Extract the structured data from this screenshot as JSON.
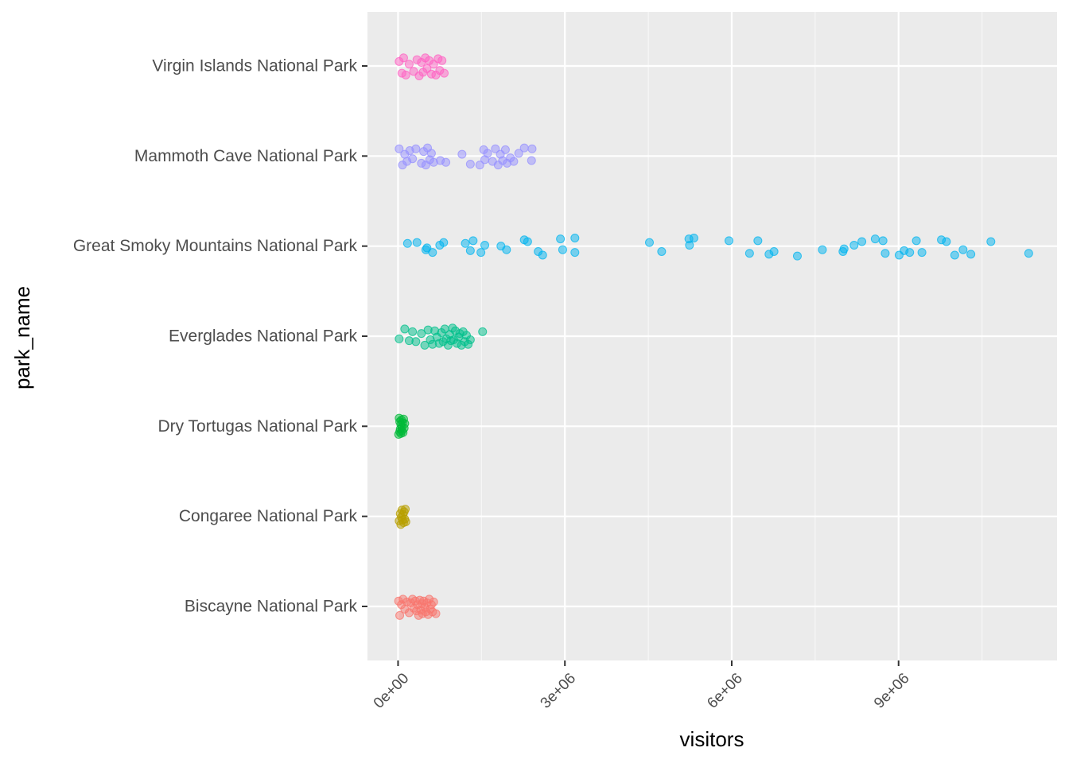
{
  "chart_data": {
    "type": "scatter",
    "title": "",
    "xlabel": "visitors",
    "ylabel": "park_name",
    "xlim": [
      -550000,
      11850000
    ],
    "x_ticks": [
      0,
      3000000,
      6000000,
      9000000
    ],
    "x_tick_labels": [
      "0e+00",
      "3e+06",
      "6e+06",
      "9e+06"
    ],
    "grid": true,
    "legend": "none",
    "categories": [
      "Biscayne National Park",
      "Congaree National Park",
      "Dry Tortugas National Park",
      "Everglades National Park",
      "Great Smoky Mountains National Park",
      "Mammoth Cave National Park",
      "Virgin Islands National Park"
    ],
    "series": [
      {
        "category": "Biscayne National Park",
        "color": "#F8766D",
        "points": [
          [
            10000,
            -0.06
          ],
          [
            30000,
            0.1
          ],
          [
            60000,
            -0.02
          ],
          [
            90000,
            -0.08
          ],
          [
            120000,
            0.03
          ],
          [
            160000,
            -0.05
          ],
          [
            200000,
            0.07
          ],
          [
            230000,
            -0.04
          ],
          [
            260000,
            -0.08
          ],
          [
            280000,
            0.02
          ],
          [
            310000,
            -0.06
          ],
          [
            330000,
            0.05
          ],
          [
            350000,
            -0.02
          ],
          [
            370000,
            0.1
          ],
          [
            390000,
            -0.07
          ],
          [
            410000,
            0.04
          ],
          [
            430000,
            -0.03
          ],
          [
            440000,
            0.08
          ],
          [
            460000,
            -0.06
          ],
          [
            480000,
            0.01
          ],
          [
            500000,
            0.06
          ],
          [
            520000,
            -0.04
          ],
          [
            540000,
            0.09
          ],
          [
            560000,
            -0.08
          ],
          [
            580000,
            0.03
          ],
          [
            600000,
            -0.02
          ],
          [
            620000,
            0.06
          ],
          [
            640000,
            -0.05
          ],
          [
            680000,
            0.08
          ]
        ]
      },
      {
        "category": "Congaree National Park",
        "color": "#B79F00",
        "points": [
          [
            20000,
            0.05
          ],
          [
            40000,
            -0.03
          ],
          [
            50000,
            0.09
          ],
          [
            60000,
            0.01
          ],
          [
            70000,
            -0.07
          ],
          [
            80000,
            0.04
          ],
          [
            90000,
            -0.02
          ],
          [
            100000,
            0.07
          ],
          [
            110000,
            -0.05
          ],
          [
            120000,
            0.03
          ],
          [
            130000,
            -0.08
          ],
          [
            140000,
            0.06
          ]
        ]
      },
      {
        "category": "Dry Tortugas National Park",
        "color": "#00BA38",
        "points": [
          [
            10000,
            0.09
          ],
          [
            20000,
            -0.09
          ],
          [
            30000,
            0.06
          ],
          [
            30000,
            -0.05
          ],
          [
            40000,
            0.03
          ],
          [
            50000,
            -0.02
          ],
          [
            50000,
            0.08
          ],
          [
            60000,
            -0.07
          ],
          [
            70000,
            0.01
          ],
          [
            70000,
            0.05
          ],
          [
            80000,
            -0.04
          ],
          [
            90000,
            0.07
          ],
          [
            100000,
            -0.08
          ],
          [
            110000,
            0.02
          ],
          [
            120000,
            -0.03
          ]
        ]
      },
      {
        "category": "Everglades National Park",
        "color": "#00C08B",
        "points": [
          [
            20000,
            0.03
          ],
          [
            120000,
            -0.08
          ],
          [
            200000,
            0.05
          ],
          [
            260000,
            -0.05
          ],
          [
            320000,
            0.06
          ],
          [
            420000,
            -0.03
          ],
          [
            480000,
            0.1
          ],
          [
            540000,
            -0.07
          ],
          [
            580000,
            0.04
          ],
          [
            620000,
            0.09
          ],
          [
            660000,
            -0.06
          ],
          [
            700000,
            0.01
          ],
          [
            740000,
            0.08
          ],
          [
            780000,
            -0.04
          ],
          [
            810000,
            0.06
          ],
          [
            840000,
            -0.08
          ],
          [
            870000,
            0.03
          ],
          [
            900000,
            0.1
          ],
          [
            930000,
            -0.02
          ],
          [
            950000,
            0.05
          ],
          [
            980000,
            -0.09
          ],
          [
            1000000,
            0.04
          ],
          [
            1030000,
            -0.06
          ],
          [
            1060000,
            0.08
          ],
          [
            1090000,
            0.01
          ],
          [
            1110000,
            -0.03
          ],
          [
            1140000,
            0.1
          ],
          [
            1170000,
            -0.05
          ],
          [
            1200000,
            0.06
          ],
          [
            1230000,
            -0.01
          ],
          [
            1260000,
            0.09
          ],
          [
            1300000,
            0.04
          ],
          [
            1520000,
            -0.05
          ]
        ]
      },
      {
        "category": "Great Smoky Mountains National Park",
        "color": "#00B4EF",
        "points": [
          [
            170000,
            -0.03
          ],
          [
            340000,
            -0.04
          ],
          [
            500000,
            0.04
          ],
          [
            520000,
            0.02
          ],
          [
            620000,
            0.07
          ],
          [
            750000,
            -0.01
          ],
          [
            820000,
            -0.04
          ],
          [
            1210000,
            -0.03
          ],
          [
            1300000,
            0.05
          ],
          [
            1350000,
            -0.06
          ],
          [
            1490000,
            0.07
          ],
          [
            1560000,
            -0.01
          ],
          [
            1850000,
            0.0
          ],
          [
            1950000,
            0.04
          ],
          [
            2270000,
            -0.07
          ],
          [
            2330000,
            -0.05
          ],
          [
            2520000,
            0.06
          ],
          [
            2600000,
            0.1
          ],
          [
            2920000,
            -0.08
          ],
          [
            2960000,
            0.04
          ],
          [
            3180000,
            0.07
          ],
          [
            3180000,
            -0.09
          ],
          [
            4520000,
            -0.04
          ],
          [
            4740000,
            0.06
          ],
          [
            5230000,
            -0.08
          ],
          [
            5240000,
            -0.01
          ],
          [
            5320000,
            -0.09
          ],
          [
            5950000,
            -0.06
          ],
          [
            6320000,
            0.08
          ],
          [
            6470000,
            -0.06
          ],
          [
            6670000,
            0.09
          ],
          [
            6760000,
            0.06
          ],
          [
            7180000,
            0.11
          ],
          [
            7630000,
            0.04
          ],
          [
            8000000,
            0.06
          ],
          [
            8020000,
            0.03
          ],
          [
            8200000,
            -0.01
          ],
          [
            8340000,
            -0.05
          ],
          [
            8580000,
            -0.08
          ],
          [
            8720000,
            -0.06
          ],
          [
            8760000,
            0.08
          ],
          [
            9010000,
            0.1
          ],
          [
            9100000,
            0.05
          ],
          [
            9200000,
            0.07
          ],
          [
            9320000,
            -0.06
          ],
          [
            9420000,
            0.07
          ],
          [
            9770000,
            -0.07
          ],
          [
            9860000,
            -0.05
          ],
          [
            10010000,
            0.1
          ],
          [
            10160000,
            0.04
          ],
          [
            10300000,
            0.09
          ],
          [
            10660000,
            -0.05
          ],
          [
            11340000,
            0.08
          ]
        ]
      },
      {
        "category": "Mammoth Cave National Park",
        "color": "#9590FF",
        "points": [
          [
            20000,
            -0.08
          ],
          [
            80000,
            0.1
          ],
          [
            120000,
            -0.02
          ],
          [
            160000,
            0.06
          ],
          [
            210000,
            -0.06
          ],
          [
            260000,
            0.03
          ],
          [
            320000,
            -0.08
          ],
          [
            420000,
            0.08
          ],
          [
            460000,
            -0.05
          ],
          [
            500000,
            0.1
          ],
          [
            530000,
            -0.09
          ],
          [
            570000,
            0.04
          ],
          [
            600000,
            -0.03
          ],
          [
            640000,
            0.07
          ],
          [
            760000,
            0.05
          ],
          [
            860000,
            0.07
          ],
          [
            1150000,
            -0.02
          ],
          [
            1300000,
            0.09
          ],
          [
            1470000,
            0.1
          ],
          [
            1540000,
            -0.07
          ],
          [
            1560000,
            0.04
          ],
          [
            1610000,
            -0.03
          ],
          [
            1700000,
            0.06
          ],
          [
            1750000,
            -0.08
          ],
          [
            1800000,
            0.1
          ],
          [
            1840000,
            -0.02
          ],
          [
            1880000,
            0.05
          ],
          [
            1930000,
            -0.07
          ],
          [
            1960000,
            0.08
          ],
          [
            2020000,
            0.02
          ],
          [
            2080000,
            0.06
          ],
          [
            2170000,
            -0.03
          ],
          [
            2270000,
            -0.09
          ],
          [
            2410000,
            -0.08
          ],
          [
            2400000,
            0.05
          ]
        ]
      },
      {
        "category": "Virgin Islands National Park",
        "color": "#FF61C3",
        "points": [
          [
            20000,
            -0.05
          ],
          [
            70000,
            0.08
          ],
          [
            100000,
            -0.09
          ],
          [
            140000,
            0.1
          ],
          [
            200000,
            -0.02
          ],
          [
            280000,
            0.06
          ],
          [
            340000,
            -0.07
          ],
          [
            380000,
            0.11
          ],
          [
            420000,
            -0.04
          ],
          [
            450000,
            0.07
          ],
          [
            490000,
            -0.09
          ],
          [
            520000,
            0.03
          ],
          [
            560000,
            -0.06
          ],
          [
            600000,
            0.09
          ],
          [
            640000,
            -0.02
          ],
          [
            680000,
            0.1
          ],
          [
            720000,
            -0.08
          ],
          [
            750000,
            0.05
          ],
          [
            790000,
            -0.06
          ],
          [
            830000,
            0.08
          ]
        ]
      }
    ]
  }
}
